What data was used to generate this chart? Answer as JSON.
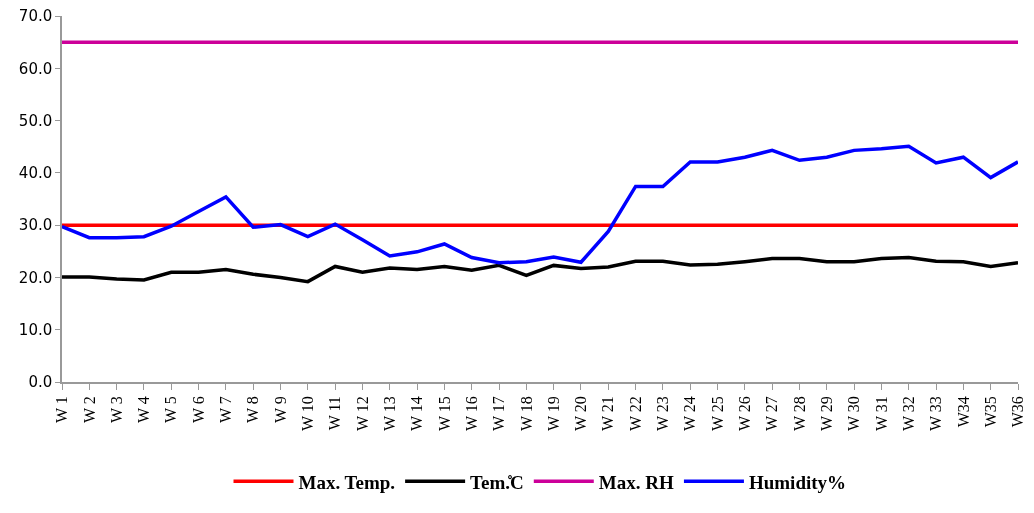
{
  "chart_data": {
    "type": "line",
    "categories": [
      "W 1",
      "W 2",
      "W 3",
      "W 4",
      "W 5",
      "W 6",
      "W 7",
      "W 8",
      "W 9",
      "W 10",
      "W 11",
      "W 12",
      "W 13",
      "W 14",
      "W 15",
      "W 16",
      "W 17",
      "W 18",
      "W 19",
      "W 20",
      "W 21",
      "W 22",
      "W 23",
      "W 24",
      "W 25",
      "W 26",
      "W 27",
      "W 28",
      "W 29",
      "W 30",
      "W 31",
      "W 32",
      "W 33",
      "W34",
      "W35",
      "W36"
    ],
    "series": [
      {
        "name": "Max. Temp.",
        "color": "#ff0000",
        "values": [
          30,
          30,
          30,
          30,
          30,
          30,
          30,
          30,
          30,
          30,
          30,
          30,
          30,
          30,
          30,
          30,
          30,
          30,
          30,
          30,
          30,
          30,
          30,
          30,
          30,
          30,
          30,
          30,
          30,
          30,
          30,
          30,
          30,
          30,
          30,
          30
        ]
      },
      {
        "name": "Tem.̊C",
        "color": "#000000",
        "values": [
          20.1,
          20.1,
          19.7,
          19.5,
          21.0,
          21.0,
          21.5,
          20.6,
          20.0,
          19.2,
          22.1,
          21.0,
          21.8,
          21.5,
          22.1,
          21.4,
          22.3,
          20.4,
          22.3,
          21.7,
          22.0,
          23.1,
          23.1,
          22.4,
          22.5,
          23.0,
          23.6,
          23.6,
          23.0,
          23.0,
          23.6,
          23.8,
          23.1,
          23.0,
          22.1,
          22.8
        ]
      },
      {
        "name": "Max. RH",
        "color": "#cc0099",
        "values": [
          65,
          65,
          65,
          65,
          65,
          65,
          65,
          65,
          65,
          65,
          65,
          65,
          65,
          65,
          65,
          65,
          65,
          65,
          65,
          65,
          65,
          65,
          65,
          65,
          65,
          65,
          65,
          65,
          65,
          65,
          65,
          65,
          65,
          65,
          65,
          65
        ]
      },
      {
        "name": "Humidity%",
        "color": "#0000ff",
        "values": [
          29.7,
          27.6,
          27.6,
          27.8,
          29.8,
          32.6,
          35.4,
          29.6,
          30.1,
          27.8,
          30.2,
          27.2,
          24.1,
          24.9,
          26.4,
          23.8,
          22.8,
          23.0,
          23.9,
          22.9,
          28.8,
          37.4,
          37.4,
          42.1,
          42.1,
          43.0,
          44.3,
          42.4,
          43.0,
          44.3,
          44.6,
          45.1,
          41.9,
          43.0,
          39.1,
          42.1
        ]
      }
    ],
    "ylim": [
      0,
      70
    ],
    "yticks": [
      {
        "value": 0,
        "label": "0.0"
      },
      {
        "value": 10,
        "label": "10.0"
      },
      {
        "value": 20,
        "label": "20.0"
      },
      {
        "value": 30,
        "label": "30.0"
      },
      {
        "value": 40,
        "label": "40.0"
      },
      {
        "value": 50,
        "label": "50.0"
      },
      {
        "value": 60,
        "label": "60.0"
      },
      {
        "value": 70,
        "label": "70.0"
      }
    ],
    "grid": false,
    "legend": "bottom",
    "marker": "none",
    "line_style": "solid"
  }
}
